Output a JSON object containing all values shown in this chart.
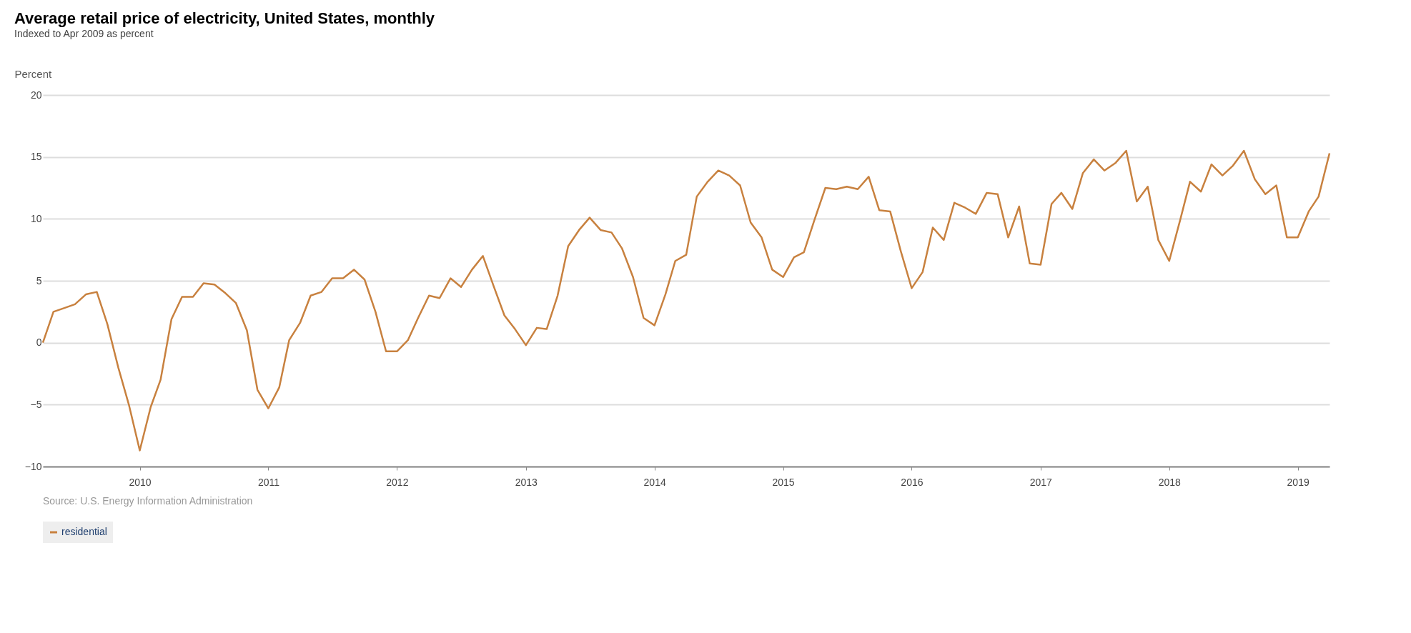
{
  "chart_data": {
    "type": "line",
    "title": "Average retail price of electricity, United States, monthly",
    "subtitle": "Indexed to Apr 2009 as percent",
    "ylabel": "Percent",
    "annotations": [
      "Source: U.S. Energy Information Administration"
    ],
    "x": [
      "2009-04",
      "2009-05",
      "2009-06",
      "2009-07",
      "2009-08",
      "2009-09",
      "2009-10",
      "2009-11",
      "2009-12",
      "2010-01",
      "2010-02",
      "2010-03",
      "2010-04",
      "2010-05",
      "2010-06",
      "2010-07",
      "2010-08",
      "2010-09",
      "2010-10",
      "2010-11",
      "2010-12",
      "2011-01",
      "2011-02",
      "2011-03",
      "2011-04",
      "2011-05",
      "2011-06",
      "2011-07",
      "2011-08",
      "2011-09",
      "2011-10",
      "2011-11",
      "2011-12",
      "2012-01",
      "2012-02",
      "2012-03",
      "2012-04",
      "2012-05",
      "2012-06",
      "2012-07",
      "2012-08",
      "2012-09",
      "2012-10",
      "2012-11",
      "2012-12",
      "2013-01",
      "2013-02",
      "2013-03",
      "2013-04",
      "2013-05",
      "2013-06",
      "2013-07",
      "2013-08",
      "2013-09",
      "2013-10",
      "2013-11",
      "2013-12",
      "2014-01",
      "2014-02",
      "2014-03",
      "2014-04",
      "2014-05",
      "2014-06",
      "2014-07",
      "2014-08",
      "2014-09",
      "2014-10",
      "2014-11",
      "2014-12",
      "2015-01",
      "2015-02",
      "2015-03",
      "2015-04",
      "2015-05",
      "2015-06",
      "2015-07",
      "2015-08",
      "2015-09",
      "2015-10",
      "2015-11",
      "2015-12",
      "2016-01",
      "2016-02",
      "2016-03",
      "2016-04",
      "2016-05",
      "2016-06",
      "2016-07",
      "2016-08",
      "2016-09",
      "2016-10",
      "2016-11",
      "2016-12",
      "2017-01",
      "2017-02",
      "2017-03",
      "2017-04",
      "2017-05",
      "2017-06",
      "2017-07",
      "2017-08",
      "2017-09",
      "2017-10",
      "2017-11",
      "2017-12",
      "2018-01",
      "2018-02",
      "2018-03",
      "2018-04",
      "2018-05",
      "2018-06",
      "2018-07",
      "2018-08",
      "2018-09",
      "2018-10",
      "2018-11",
      "2018-12",
      "2019-01",
      "2019-02",
      "2019-03",
      "2019-04"
    ],
    "series": [
      {
        "name": "residential",
        "color": "#c8813f",
        "values": [
          0,
          2.5,
          2.8,
          3.1,
          3.9,
          4.1,
          1.5,
          -2.0,
          -5.0,
          -8.7,
          -5.2,
          -3.0,
          1.9,
          3.7,
          3.7,
          4.8,
          4.7,
          4.0,
          3.2,
          1.0,
          -3.8,
          -5.3,
          -3.6,
          0.2,
          1.6,
          3.8,
          4.1,
          5.2,
          5.2,
          5.9,
          5.1,
          2.5,
          -0.7,
          -0.7,
          0.2,
          2.0,
          3.8,
          3.6,
          5.2,
          4.5,
          5.9,
          7.0,
          4.6,
          2.2,
          1.1,
          -0.2,
          1.2,
          1.1,
          3.8,
          7.8,
          9.1,
          10.1,
          9.1,
          8.9,
          7.6,
          5.3,
          2.0,
          1.4,
          3.9,
          6.6,
          7.1,
          11.8,
          13.0,
          13.9,
          13.5,
          12.7,
          9.7,
          8.5,
          5.9,
          5.3,
          6.9,
          7.3,
          10.0,
          12.5,
          12.4,
          12.6,
          12.4,
          13.4,
          10.7,
          10.6,
          7.4,
          4.4,
          5.7,
          9.3,
          8.3,
          11.3,
          10.9,
          10.4,
          12.1,
          12.0,
          8.5,
          11.0,
          6.4,
          6.3,
          11.2,
          12.1,
          10.8,
          13.7,
          14.8,
          13.9,
          14.5,
          15.5,
          11.4,
          12.6,
          8.3,
          6.6,
          9.9,
          13.0,
          12.2,
          14.4,
          13.5,
          14.3,
          15.5,
          13.2,
          12.0,
          12.7,
          8.5,
          8.5,
          10.6,
          11.8,
          15.3
        ]
      }
    ],
    "xlim": [
      "2009-04",
      "2019-04"
    ],
    "xticks": [
      "2010",
      "2011",
      "2012",
      "2013",
      "2014",
      "2015",
      "2016",
      "2017",
      "2018",
      "2019"
    ],
    "ylim": [
      -10,
      20
    ],
    "yticks": [
      -10,
      -5,
      0,
      5,
      10,
      15,
      20
    ],
    "grid": "y",
    "legend": "bottom",
    "marker": "none",
    "line_style": "solid"
  }
}
